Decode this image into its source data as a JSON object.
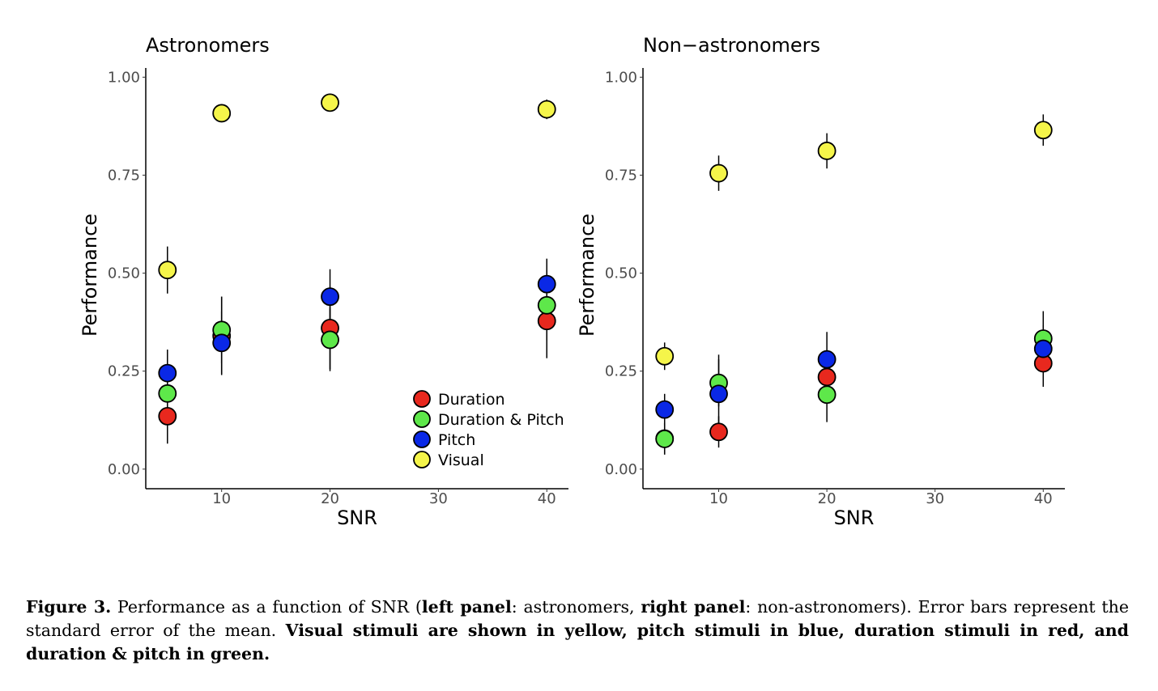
{
  "chart_data": [
    {
      "type": "scatter",
      "title": "Astronomers",
      "xlabel": "SNR",
      "ylabel": "Performance",
      "xlim": [
        3,
        42
      ],
      "ylim": [
        -0.05,
        1.04
      ],
      "xticks": [
        10,
        20,
        30,
        40
      ],
      "yticks": [
        0.0,
        0.25,
        0.5,
        0.75,
        1.0
      ],
      "ytick_labels": [
        "0.00",
        "0.25",
        "0.50",
        "0.75",
        "1.00"
      ],
      "legend_position": "bottom-right",
      "series": [
        {
          "name": "Duration",
          "color": "#e8281e",
          "x": [
            5,
            10,
            20,
            40
          ],
          "y": [
            0.135,
            0.34,
            0.36,
            0.378
          ],
          "err": [
            0.07,
            0.1,
            0.105,
            0.095
          ]
        },
        {
          "name": "Duration & Pitch",
          "color": "#5ee84a",
          "x": [
            5,
            10,
            20,
            40
          ],
          "y": [
            0.193,
            0.355,
            0.33,
            0.418
          ],
          "err": [
            0.07,
            0.085,
            0.08,
            0.09
          ]
        },
        {
          "name": "Pitch",
          "color": "#0a28e6",
          "x": [
            5,
            10,
            20,
            40
          ],
          "y": [
            0.245,
            0.322,
            0.44,
            0.472
          ],
          "err": [
            0.06,
            0.08,
            0.07,
            0.065
          ]
        },
        {
          "name": "Visual",
          "color": "#f5f54a",
          "x": [
            5,
            10,
            20,
            40
          ],
          "y": [
            0.508,
            0.908,
            0.935,
            0.918
          ],
          "err": [
            0.06,
            0.012,
            0.01,
            0.025
          ]
        }
      ]
    },
    {
      "type": "scatter",
      "title": "Non−astronomers",
      "xlabel": "SNR",
      "ylabel": "Performance",
      "xlim": [
        3,
        42
      ],
      "ylim": [
        -0.05,
        1.04
      ],
      "xticks": [
        10,
        20,
        30,
        40
      ],
      "yticks": [
        0.0,
        0.25,
        0.5,
        0.75,
        1.0
      ],
      "ytick_labels": [
        "0.00",
        "0.25",
        "0.50",
        "0.75",
        "1.00"
      ],
      "series": [
        {
          "name": "Duration",
          "color": "#e8281e",
          "x": [
            5,
            10,
            20,
            40
          ],
          "y": [
            0.078,
            0.095,
            0.235,
            0.27
          ],
          "err": [
            0.04,
            0.04,
            0.05,
            0.06
          ]
        },
        {
          "name": "Duration & Pitch",
          "color": "#5ee84a",
          "x": [
            5,
            10,
            20,
            40
          ],
          "y": [
            0.077,
            0.22,
            0.19,
            0.333
          ],
          "err": [
            0.04,
            0.06,
            0.07,
            0.07
          ]
        },
        {
          "name": "Pitch",
          "color": "#0a28e6",
          "x": [
            5,
            10,
            20,
            40
          ],
          "y": [
            0.152,
            0.192,
            0.28,
            0.307
          ],
          "err": [
            0.04,
            0.1,
            0.07,
            0.06
          ]
        },
        {
          "name": "Visual",
          "color": "#f5f54a",
          "x": [
            5,
            10,
            20,
            40
          ],
          "y": [
            0.288,
            0.755,
            0.812,
            0.865
          ],
          "err": [
            0.035,
            0.045,
            0.045,
            0.04
          ]
        }
      ]
    }
  ],
  "caption": {
    "label": "Figure 3.",
    "part1": " Performance as a function of SNR (",
    "bold1": "left panel",
    "part2": ": astronomers, ",
    "bold2": "right panel",
    "part3": ": non-astronomers). Error bars represent the standard error of the mean. ",
    "bold3": "Visual stimuli are shown in yellow, pitch stimuli in blue, duration stimuli in red, and duration & pitch in green."
  }
}
